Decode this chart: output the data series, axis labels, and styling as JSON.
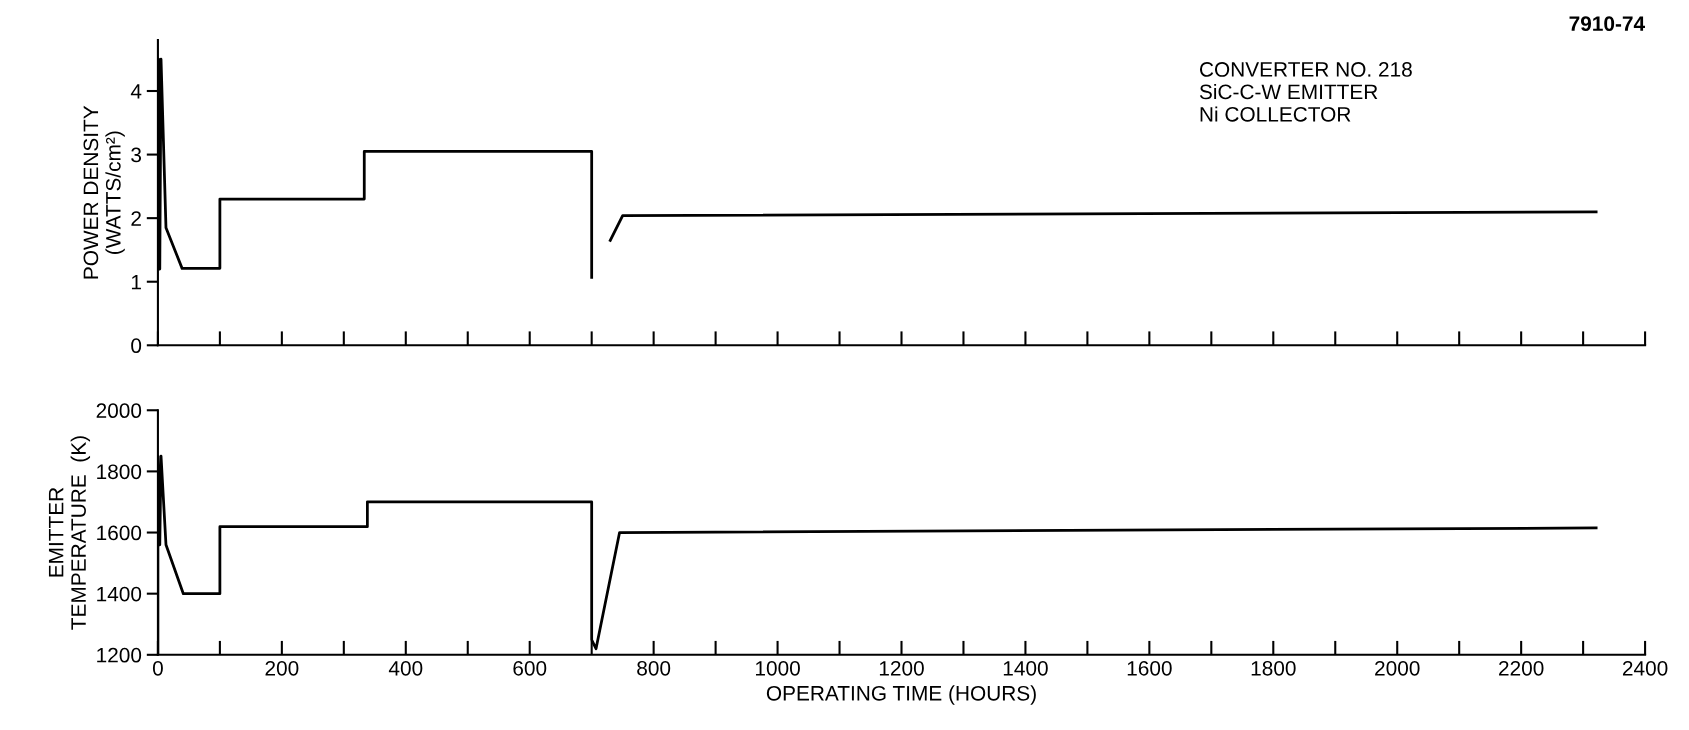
{
  "chart_data": [
    {
      "type": "line",
      "ylabel": "POWER DENSITY\n(WATTS/cm²)",
      "annotations": [
        "7910-74",
        "CONVERTER NO. 218\nSiC-C-W EMITTER\nNi COLLECTOR"
      ],
      "series": [
        {
          "color": "#000000",
          "x": [
            0,
            1,
            3,
            5,
            13,
            39,
            100,
            100,
            333,
            333,
            700,
            700,
            715,
            730,
            750,
            2321
          ],
          "values": [
            1.2,
            4.5,
            1.2,
            4.5,
            1.85,
            1.21,
            1.21,
            2.3,
            2.3,
            3.05,
            3.05,
            1.07,
            null,
            1.65,
            2.04,
            2.1
          ]
        }
      ],
      "xlim": [
        0,
        2400
      ],
      "ylim": [
        0,
        4.8
      ],
      "yticks": [
        0,
        1,
        2,
        3,
        4
      ],
      "xticks": [
        0,
        100,
        200,
        300,
        400,
        500,
        600,
        700,
        800,
        900,
        1000,
        1100,
        1200,
        1300,
        1400,
        1500,
        1600,
        1700,
        1800,
        1900,
        2000,
        2100,
        2200,
        2300,
        2400
      ],
      "tick_labels": "y",
      "grid": false,
      "legend": false
    },
    {
      "type": "line",
      "ylabel": "EMITTER\nTEMPERATURE  (K)",
      "xlabel": "OPERATING TIME (HOURS)",
      "series": [
        {
          "color": "#000000",
          "x": [
            0,
            0,
            3,
            5,
            13,
            41,
            100,
            100,
            338,
            338,
            700,
            700,
            707,
            745,
            2321
          ],
          "values": [
            1200,
            1850,
            1560,
            1850,
            1560,
            1400,
            1400,
            1619,
            1619,
            1700,
            1700,
            1249,
            1220,
            1600,
            1615
          ]
        }
      ],
      "xlim": [
        0,
        2400
      ],
      "ylim": [
        1200,
        2000
      ],
      "yticks": [
        1200,
        1400,
        1600,
        1800,
        2000
      ],
      "xticks": [
        0,
        {
          "value": 100,
          "label": null
        },
        200,
        {
          "value": 300,
          "label": null
        },
        400,
        {
          "value": 500,
          "label": null
        },
        600,
        {
          "value": 700,
          "label": null
        },
        800,
        {
          "value": 900,
          "label": null
        },
        1000,
        {
          "value": 1100,
          "label": null
        },
        1200,
        {
          "value": 1300,
          "label": null
        },
        1400,
        {
          "value": 1500,
          "label": null
        },
        1600,
        {
          "value": 1700,
          "label": null
        },
        1800,
        {
          "value": 1900,
          "label": null
        },
        2000,
        {
          "value": 2100,
          "label": null
        },
        2200,
        {
          "value": 2300,
          "label": null
        },
        2400
      ],
      "grid": false,
      "legend": false
    }
  ]
}
